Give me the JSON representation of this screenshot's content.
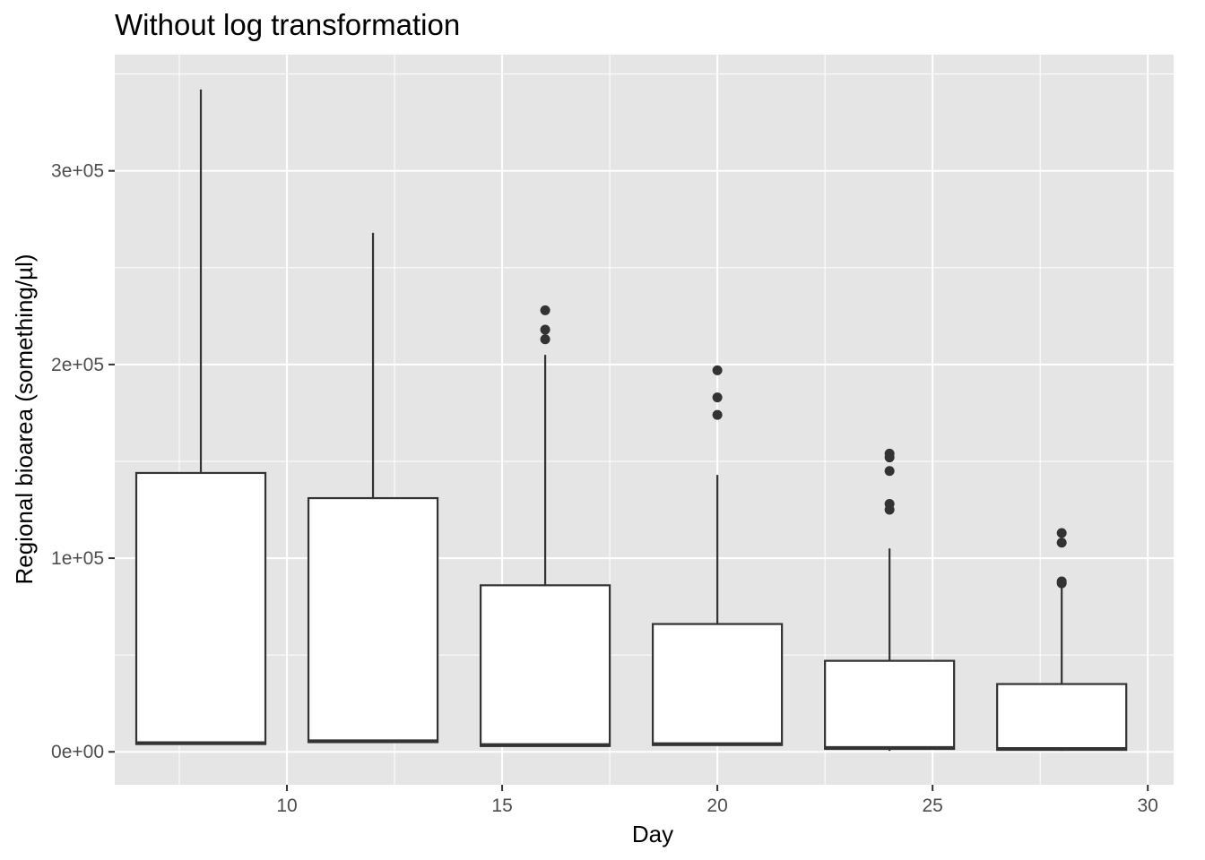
{
  "chart_data": {
    "type": "boxplot",
    "title": "Without log transformation",
    "xlabel": "Day",
    "ylabel": "Regional bioarea (something/µl)",
    "xlim": [
      6,
      30.6
    ],
    "ylim": [
      -17000,
      360000
    ],
    "x_ticks": [
      10,
      15,
      20,
      25,
      30
    ],
    "x_tick_labels": [
      "10",
      "15",
      "20",
      "25",
      "30"
    ],
    "y_ticks": [
      0,
      100000,
      200000,
      300000
    ],
    "y_tick_labels": [
      "0e+00",
      "1e+05",
      "2e+05",
      "3e+05"
    ],
    "grid": true,
    "box_width": 3,
    "colors": {
      "panel": "#e5e5e5",
      "grid": "#ffffff",
      "box_fill": "#ffffff",
      "box_stroke": "#333333",
      "tick": "#333333"
    },
    "series": [
      {
        "x": 8,
        "lower_whisker": 4000,
        "q1": 4000,
        "median": 4500,
        "q3": 144000,
        "upper_whisker": 342000,
        "outliers": []
      },
      {
        "x": 12,
        "lower_whisker": 5000,
        "q1": 5000,
        "median": 5500,
        "q3": 131000,
        "upper_whisker": 268000,
        "outliers": []
      },
      {
        "x": 16,
        "lower_whisker": 3000,
        "q1": 3000,
        "median": 3500,
        "q3": 86000,
        "upper_whisker": 205000,
        "outliers": [
          213000,
          218000,
          228000
        ]
      },
      {
        "x": 20,
        "lower_whisker": 3500,
        "q1": 3500,
        "median": 4000,
        "q3": 66000,
        "upper_whisker": 143000,
        "outliers": [
          174000,
          183000,
          197000
        ]
      },
      {
        "x": 24,
        "lower_whisker": 500,
        "q1": 1500,
        "median": 2000,
        "q3": 47000,
        "upper_whisker": 105000,
        "outliers": [
          125000,
          128000,
          145000,
          152000,
          154000
        ]
      },
      {
        "x": 28,
        "lower_whisker": 500,
        "q1": 1000,
        "median": 1500,
        "q3": 35000,
        "upper_whisker": 85000,
        "outliers": [
          87000,
          88000,
          108000,
          113000
        ]
      }
    ]
  }
}
